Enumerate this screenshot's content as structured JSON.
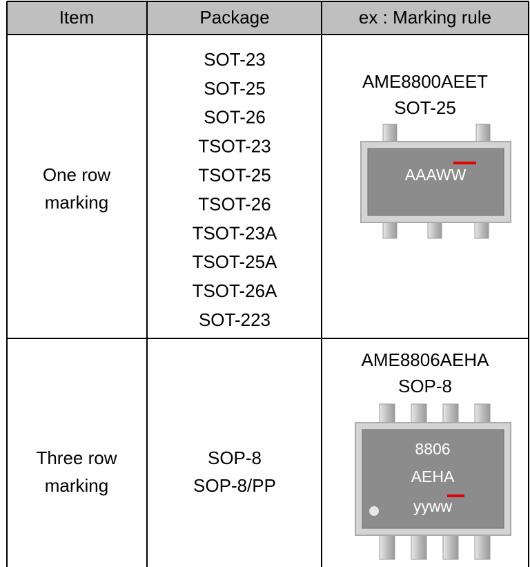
{
  "table": {
    "header": [
      "Item",
      "Package",
      "ex : Marking rule"
    ],
    "rows": [
      {
        "item": [
          "One row",
          "marking"
        ],
        "packages": [
          "SOT-23",
          "SOT-25",
          "SOT-26",
          "TSOT-23",
          "TSOT-25",
          "TSOT-26",
          "TSOT-23A",
          "TSOT-25A",
          "TSOT-26A",
          "SOT-223"
        ],
        "example": {
          "part": "AME8800AEET",
          "package": "SOT-25",
          "marking": [
            "AAAWW"
          ]
        }
      },
      {
        "item": [
          "Three row",
          "marking"
        ],
        "packages": [
          "SOP-8",
          "SOP-8/PP"
        ],
        "example": {
          "part": "AME8806AEHA",
          "package": "SOP-8",
          "marking": [
            "8806",
            "AEHA",
            "yyww"
          ]
        }
      }
    ]
  }
}
